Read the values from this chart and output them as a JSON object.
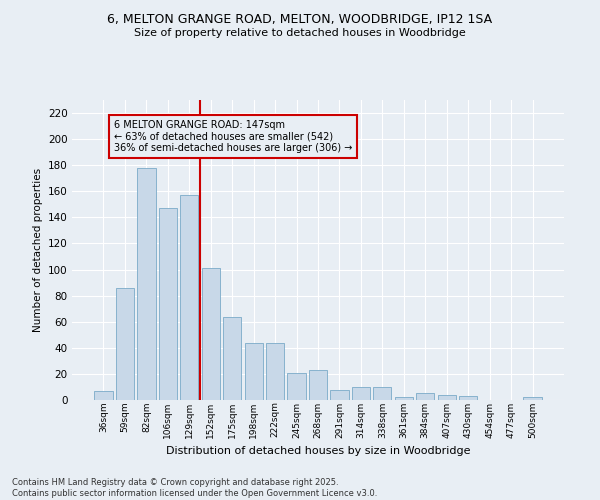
{
  "title_line1": "6, MELTON GRANGE ROAD, MELTON, WOODBRIDGE, IP12 1SA",
  "title_line2": "Size of property relative to detached houses in Woodbridge",
  "xlabel": "Distribution of detached houses by size in Woodbridge",
  "ylabel": "Number of detached properties",
  "bar_color": "#c8d8e8",
  "bar_edge_color": "#7aaac8",
  "categories": [
    "36sqm",
    "59sqm",
    "82sqm",
    "106sqm",
    "129sqm",
    "152sqm",
    "175sqm",
    "198sqm",
    "222sqm",
    "245sqm",
    "268sqm",
    "291sqm",
    "314sqm",
    "338sqm",
    "361sqm",
    "384sqm",
    "407sqm",
    "430sqm",
    "454sqm",
    "477sqm",
    "500sqm"
  ],
  "values": [
    7,
    86,
    178,
    147,
    157,
    101,
    64,
    44,
    44,
    21,
    23,
    8,
    10,
    10,
    2,
    5,
    4,
    3,
    0,
    0,
    2
  ],
  "ylim": [
    0,
    230
  ],
  "yticks": [
    0,
    20,
    40,
    60,
    80,
    100,
    120,
    140,
    160,
    180,
    200,
    220
  ],
  "vline_x": 4.5,
  "vline_color": "#cc0000",
  "annotation_text": "6 MELTON GRANGE ROAD: 147sqm\n← 63% of detached houses are smaller (542)\n36% of semi-detached houses are larger (306) →",
  "box_color": "#cc0000",
  "footer_line1": "Contains HM Land Registry data © Crown copyright and database right 2025.",
  "footer_line2": "Contains public sector information licensed under the Open Government Licence v3.0.",
  "background_color": "#e8eef4",
  "grid_color": "#ffffff"
}
